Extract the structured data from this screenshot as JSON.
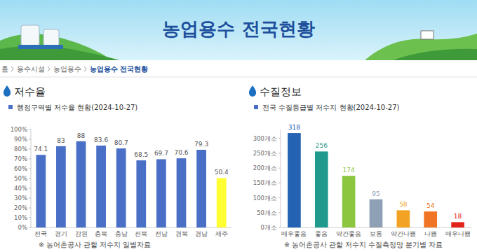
{
  "page": {
    "header": "농업용수 전국현황",
    "breadcrumb": [
      "홈",
      "용수시설",
      "농업용수",
      "농업용수 전국현황"
    ]
  },
  "chart_data": [
    {
      "type": "bar",
      "title": "저수율",
      "subtitle": "행정구역별 저수율 현황(2024-10-27)",
      "categories": [
        "전국",
        "경기",
        "강원",
        "충북",
        "충남",
        "전북",
        "전남",
        "경북",
        "경남",
        "제주"
      ],
      "values": [
        74.1,
        83,
        88,
        83.6,
        80.7,
        68.5,
        69.7,
        70.6,
        79.3,
        50.4
      ],
      "colors": [
        "#4a6fc7",
        "#4a6fc7",
        "#4a6fc7",
        "#4a6fc7",
        "#4a6fc7",
        "#4a6fc7",
        "#4a6fc7",
        "#4a6fc7",
        "#4a6fc7",
        "#ffff33"
      ],
      "ylim": [
        0,
        100
      ],
      "yticks": [
        {
          "value": 0,
          "label": "0%"
        },
        {
          "value": 10,
          "label": "10%"
        },
        {
          "value": 20,
          "label": "20%"
        },
        {
          "value": 30,
          "label": "30%"
        },
        {
          "value": 40,
          "label": "40%"
        },
        {
          "value": 50,
          "label": "50%"
        },
        {
          "value": 60,
          "label": "60%"
        },
        {
          "value": 70,
          "label": "70%"
        },
        {
          "value": 80,
          "label": "80%"
        },
        {
          "value": 90,
          "label": "90%"
        },
        {
          "value": 100,
          "label": "100%"
        }
      ],
      "grid": false,
      "data_labels": true,
      "annotations": [
        "※ 농어촌공사 관할 저수지 일별자료"
      ]
    },
    {
      "type": "bar",
      "title": "수질정보",
      "subtitle": "전국 수질등급별 저수지 현황(2024-10-27)",
      "categories": [
        "매우좋음",
        "좋음",
        "약간좋음",
        "보통",
        "약간나쁨",
        "나쁨",
        "매우나쁨"
      ],
      "values": [
        318,
        256,
        174,
        95,
        58,
        54,
        18
      ],
      "colors": [
        "#2462b3",
        "#1f9a8c",
        "#8cc63f",
        "#8ea0b6",
        "#f2a324",
        "#f07423",
        "#e2231a"
      ],
      "ylim": [
        0,
        330
      ],
      "yticks": [
        {
          "value": 0,
          "label": "0개소"
        },
        {
          "value": 50,
          "label": "50개소"
        },
        {
          "value": 100,
          "label": "100개소"
        },
        {
          "value": 150,
          "label": "150개소"
        },
        {
          "value": 200,
          "label": "200개소"
        },
        {
          "value": 250,
          "label": "250개소"
        },
        {
          "value": 300,
          "label": "300개소"
        }
      ],
      "grid": false,
      "data_labels": true,
      "annotations": [
        "※ 농어촌공사 관할 저수지 수질측정망 분기별 자료"
      ]
    }
  ]
}
